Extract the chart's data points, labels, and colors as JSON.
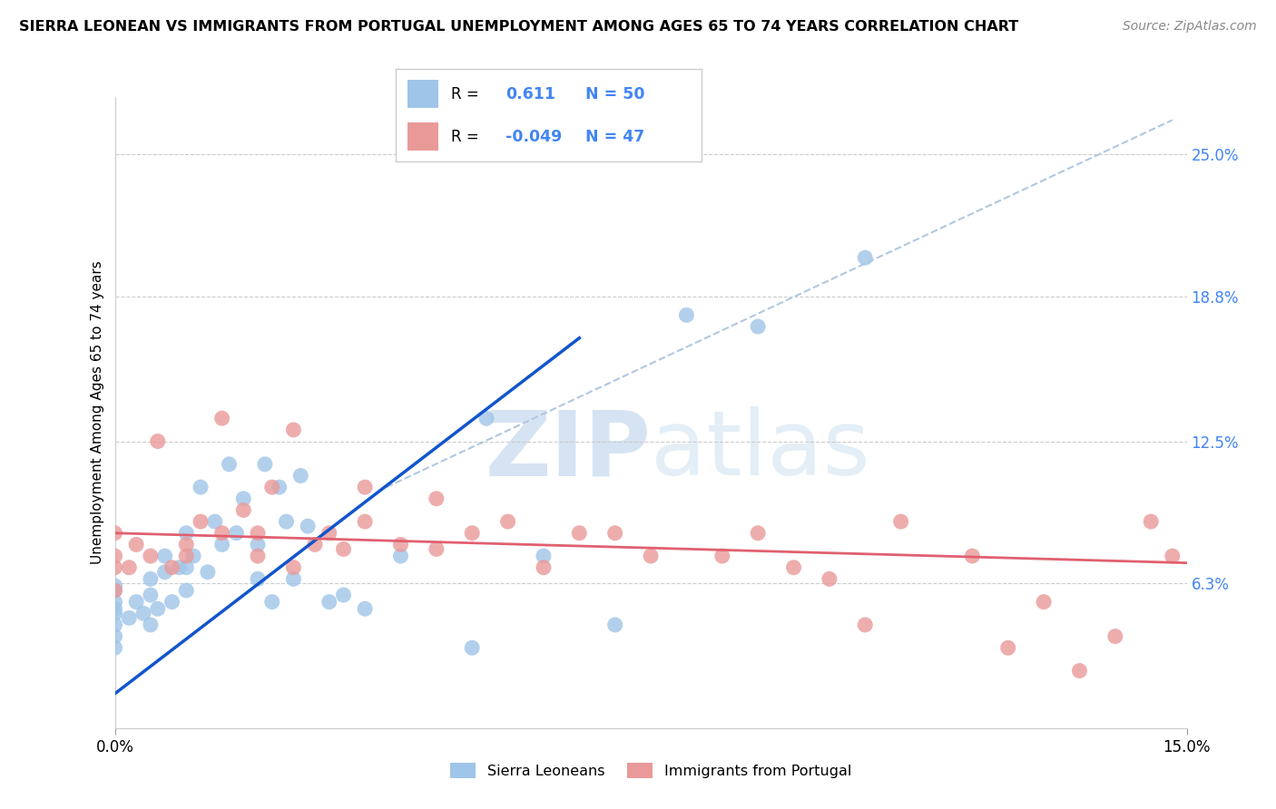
{
  "title": "SIERRA LEONEAN VS IMMIGRANTS FROM PORTUGAL UNEMPLOYMENT AMONG AGES 65 TO 74 YEARS CORRELATION CHART",
  "source": "Source: ZipAtlas.com",
  "ylabel": "Unemployment Among Ages 65 to 74 years",
  "xlim": [
    0.0,
    15.0
  ],
  "ylim": [
    0.0,
    27.5
  ],
  "right_yticks": [
    6.3,
    12.5,
    18.8,
    25.0
  ],
  "right_ytick_labels": [
    "6.3%",
    "12.5%",
    "18.8%",
    "25.0%"
  ],
  "blue_color": "#9fc5e8",
  "pink_color": "#ea9999",
  "blue_line_color": "#1155cc",
  "pink_line_color": "#e06070",
  "dashed_line_color": "#b0c8e0",
  "legend_r_blue": "0.611",
  "legend_n_blue": "50",
  "legend_r_pink": "-0.049",
  "legend_n_pink": "47",
  "blue_scatter_x": [
    0.0,
    0.0,
    0.0,
    0.0,
    0.0,
    0.0,
    0.0,
    0.0,
    0.2,
    0.3,
    0.4,
    0.5,
    0.5,
    0.5,
    0.6,
    0.7,
    0.7,
    0.8,
    0.9,
    1.0,
    1.0,
    1.0,
    1.1,
    1.2,
    1.3,
    1.4,
    1.5,
    1.6,
    1.7,
    1.8,
    2.0,
    2.0,
    2.1,
    2.2,
    2.3,
    2.4,
    2.5,
    2.6,
    2.7,
    3.0,
    3.2,
    3.5,
    4.0,
    5.0,
    5.2,
    6.0,
    7.0,
    8.0,
    9.0,
    10.5
  ],
  "blue_scatter_y": [
    3.5,
    4.0,
    4.5,
    5.0,
    5.2,
    5.5,
    6.0,
    6.2,
    4.8,
    5.5,
    5.0,
    4.5,
    5.8,
    6.5,
    5.2,
    6.8,
    7.5,
    5.5,
    7.0,
    6.0,
    7.0,
    8.5,
    7.5,
    10.5,
    6.8,
    9.0,
    8.0,
    11.5,
    8.5,
    10.0,
    6.5,
    8.0,
    11.5,
    5.5,
    10.5,
    9.0,
    6.5,
    11.0,
    8.8,
    5.5,
    5.8,
    5.2,
    7.5,
    3.5,
    13.5,
    7.5,
    4.5,
    18.0,
    17.5,
    20.5
  ],
  "pink_scatter_x": [
    0.0,
    0.0,
    0.0,
    0.0,
    0.2,
    0.3,
    0.5,
    0.6,
    0.8,
    1.0,
    1.0,
    1.2,
    1.5,
    1.5,
    1.8,
    2.0,
    2.0,
    2.2,
    2.5,
    2.5,
    2.8,
    3.0,
    3.2,
    3.5,
    3.5,
    4.0,
    4.5,
    4.5,
    5.0,
    5.5,
    6.0,
    6.5,
    7.0,
    7.5,
    8.5,
    9.0,
    9.5,
    10.0,
    10.5,
    11.0,
    12.0,
    12.5,
    13.0,
    13.5,
    14.0,
    14.5,
    14.8
  ],
  "pink_scatter_y": [
    6.0,
    7.0,
    7.5,
    8.5,
    7.0,
    8.0,
    7.5,
    12.5,
    7.0,
    7.5,
    8.0,
    9.0,
    13.5,
    8.5,
    9.5,
    7.5,
    8.5,
    10.5,
    7.0,
    13.0,
    8.0,
    8.5,
    7.8,
    9.0,
    10.5,
    8.0,
    7.8,
    10.0,
    8.5,
    9.0,
    7.0,
    8.5,
    8.5,
    7.5,
    7.5,
    8.5,
    7.0,
    6.5,
    4.5,
    9.0,
    7.5,
    3.5,
    5.5,
    2.5,
    4.0,
    9.0,
    7.5
  ],
  "blue_line_x0": 0.0,
  "blue_line_x1": 6.5,
  "blue_line_y0": 1.5,
  "blue_line_y1": 17.0,
  "pink_line_x0": 0.0,
  "pink_line_x1": 15.0,
  "pink_line_y0": 8.5,
  "pink_line_y1": 7.2,
  "dash_line_x0": 3.8,
  "dash_line_x1": 14.8,
  "dash_line_y0": 10.5,
  "dash_line_y1": 26.5
}
